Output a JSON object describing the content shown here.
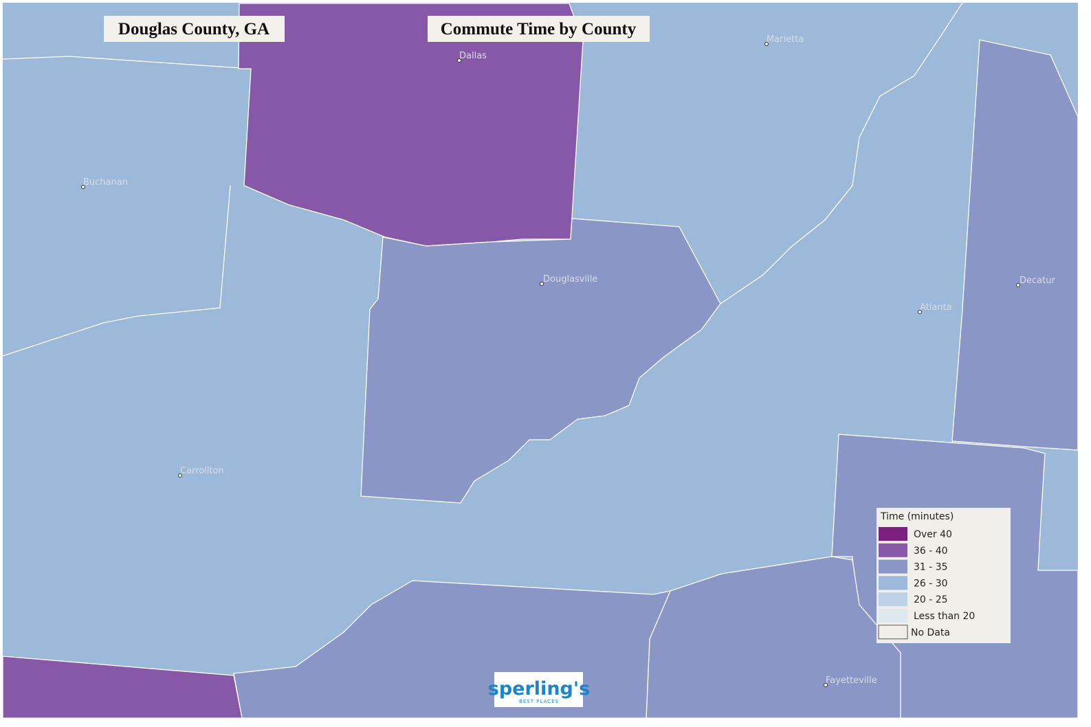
{
  "header": {
    "place": "Douglas County, GA",
    "title": "Commute Time by County"
  },
  "cities": [
    {
      "label": "Dallas"
    },
    {
      "label": "Marietta"
    },
    {
      "label": "Buchanan"
    },
    {
      "label": "Douglasville"
    },
    {
      "label": "Atlanta"
    },
    {
      "label": "Decatur"
    },
    {
      "label": "Carrollton"
    },
    {
      "label": "Fayetteville"
    }
  ],
  "legend": {
    "title": "Time  (minutes)",
    "items": [
      {
        "label": "Over 40",
        "color": "#7b1e7e"
      },
      {
        "label": "36 - 40",
        "color": "#8858a8"
      },
      {
        "label": "31 - 35",
        "color": "#8a96c6"
      },
      {
        "label": "26 - 30",
        "color": "#9cb9d9"
      },
      {
        "label": "20 - 25",
        "color": "#bdd2e6"
      },
      {
        "label": "Less than 20",
        "color": "#dde9ef"
      },
      {
        "label": "No Data",
        "color": "#eeede8"
      }
    ]
  },
  "logo": {
    "name": "sperling's",
    "tagline": "BEST PLACES"
  }
}
